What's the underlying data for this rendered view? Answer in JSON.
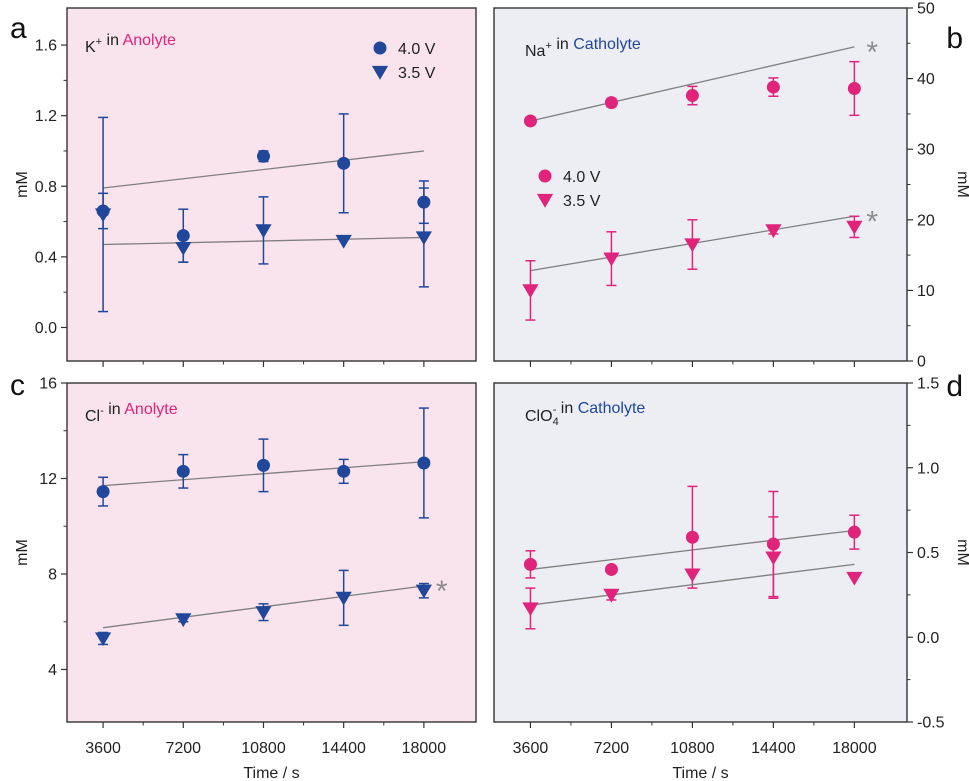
{
  "colors": {
    "blue": "#21479b",
    "pink": "#e0247b",
    "anolyte_bg": "#f9e3ec",
    "catholyte_bg": "#eceef4",
    "fit_line": "#7f7f7f",
    "asterisk": "#8c8c8c"
  },
  "chart_data": [
    {
      "id": "a",
      "type": "scatter",
      "panel_label": "a",
      "title_parts": [
        {
          "text": "K",
          "sup": "+",
          "color": "#222222"
        },
        {
          "text": " in ",
          "color": "#222222"
        },
        {
          "text": "Anolyte",
          "color": "#e0247b"
        }
      ],
      "ylabel": "mM",
      "xlabel": "",
      "x_ticks": [
        3600,
        7200,
        10800,
        14400,
        18000
      ],
      "x_tick_labels": [],
      "xlim": [
        1980,
        20340
      ],
      "ylim": [
        -0.19,
        1.81
      ],
      "y_ticks": [
        0.0,
        0.4,
        0.8,
        1.2,
        1.6
      ],
      "y_tick_labels": [
        "0.0",
        "0.4",
        "0.8",
        "1.2",
        "1.6"
      ],
      "y_axis_side": "left",
      "legend_position": "top-right",
      "legend": [
        {
          "label": "4.0 V",
          "marker": "circle",
          "color": "#21479b"
        },
        {
          "label": "3.5 V",
          "marker": "triangle-down",
          "color": "#21479b"
        }
      ],
      "series": [
        {
          "name": "4.0 V",
          "marker": "circle",
          "color": "#21479b",
          "x": [
            3600,
            7200,
            10800,
            14400,
            18000
          ],
          "y": [
            0.66,
            0.52,
            0.97,
            0.93,
            0.71
          ],
          "err": [
            0.1,
            0.15,
            0.03,
            0.28,
            0.12
          ],
          "fit": [
            0.79,
            1.0
          ],
          "asterisk": false
        },
        {
          "name": "3.5 V",
          "marker": "triangle-down",
          "color": "#21479b",
          "x": [
            3600,
            7200,
            10800,
            14400,
            18000
          ],
          "y": [
            0.64,
            0.45,
            0.55,
            0.49,
            0.51
          ],
          "err": [
            0.55,
            0.08,
            0.19,
            0.0,
            0.28
          ],
          "fit": [
            0.47,
            0.51
          ],
          "asterisk": false
        }
      ]
    },
    {
      "id": "b",
      "type": "scatter",
      "panel_label": "b",
      "title_parts": [
        {
          "text": "Na",
          "sup": "+",
          "color": "#222222"
        },
        {
          "text": " in ",
          "color": "#222222"
        },
        {
          "text": "Catholyte",
          "color": "#21479b"
        }
      ],
      "ylabel": "mM",
      "xlabel": "",
      "x_ticks": [
        3600,
        7200,
        10800,
        14400,
        18000
      ],
      "x_tick_labels": [],
      "xlim": [
        1980,
        20340
      ],
      "ylim": [
        0,
        50
      ],
      "y_ticks": [
        0,
        10,
        20,
        30,
        40,
        50
      ],
      "y_tick_labels": [
        "0",
        "10",
        "20",
        "30",
        "40",
        "50"
      ],
      "y_axis_side": "right",
      "legend_position": "center-left",
      "legend": [
        {
          "label": "4.0 V",
          "marker": "circle",
          "color": "#e0247b"
        },
        {
          "label": "3.5 V",
          "marker": "triangle-down",
          "color": "#e0247b"
        }
      ],
      "series": [
        {
          "name": "4.0 V",
          "marker": "circle",
          "color": "#e0247b",
          "x": [
            3600,
            7200,
            10800,
            14400,
            18000
          ],
          "y": [
            34.0,
            36.6,
            37.6,
            38.8,
            38.6
          ],
          "err": [
            0.5,
            0.6,
            1.3,
            1.3,
            3.8
          ],
          "fit": [
            34.0,
            44.5
          ],
          "asterisk": true
        },
        {
          "name": "3.5 V",
          "marker": "triangle-down",
          "color": "#e0247b",
          "x": [
            3600,
            7200,
            10800,
            14400,
            18000
          ],
          "y": [
            10.0,
            14.5,
            16.5,
            18.5,
            19.0
          ],
          "err": [
            4.2,
            3.8,
            3.5,
            0.5,
            1.5
          ],
          "fit": [
            12.8,
            20.5
          ],
          "asterisk": true
        }
      ]
    },
    {
      "id": "c",
      "type": "scatter",
      "panel_label": "c",
      "title_parts": [
        {
          "text": "Cl",
          "sup": "-",
          "color": "#222222"
        },
        {
          "text": " in ",
          "color": "#222222"
        },
        {
          "text": "Anolyte",
          "color": "#e0247b"
        }
      ],
      "ylabel": "mM",
      "xlabel": "Time / s",
      "x_ticks": [
        3600,
        7200,
        10800,
        14400,
        18000
      ],
      "x_tick_labels": [
        "3600",
        "7200",
        "10800",
        "14400",
        "18000"
      ],
      "xlim": [
        1980,
        20340
      ],
      "ylim": [
        1.8,
        16
      ],
      "y_ticks": [
        4,
        8,
        12,
        16
      ],
      "y_tick_labels": [
        "4",
        "8",
        "12",
        "16"
      ],
      "y_axis_side": "left",
      "legend_position": "none",
      "legend": [],
      "series": [
        {
          "name": "4.0 V",
          "marker": "circle",
          "color": "#21479b",
          "x": [
            3600,
            7200,
            10800,
            14400,
            18000
          ],
          "y": [
            11.45,
            12.3,
            12.55,
            12.3,
            12.65
          ],
          "err": [
            0.6,
            0.7,
            1.1,
            0.5,
            2.3
          ],
          "fit": [
            11.7,
            12.7
          ],
          "asterisk": false
        },
        {
          "name": "3.5 V",
          "marker": "triangle-down",
          "color": "#21479b",
          "x": [
            3600,
            7200,
            10800,
            14400,
            18000
          ],
          "y": [
            5.3,
            6.1,
            6.4,
            7.0,
            7.3
          ],
          "err": [
            0.25,
            0.1,
            0.35,
            1.15,
            0.3
          ],
          "fit": [
            5.75,
            7.5
          ],
          "asterisk": true
        }
      ]
    },
    {
      "id": "d",
      "type": "scatter",
      "panel_label": "d",
      "title_parts": [
        {
          "text": "ClO",
          "sub": "4",
          "sup": "-",
          "color": "#222222"
        },
        {
          "text": " in ",
          "color": "#222222"
        },
        {
          "text": "Catholyte",
          "color": "#21479b"
        }
      ],
      "ylabel": "mM",
      "xlabel": "Time / s",
      "x_ticks": [
        3600,
        7200,
        10800,
        14400,
        18000
      ],
      "x_tick_labels": [
        "3600",
        "7200",
        "10800",
        "14400",
        "18000"
      ],
      "xlim": [
        1980,
        20340
      ],
      "ylim": [
        -0.5,
        1.5
      ],
      "y_ticks": [
        -0.5,
        0.0,
        0.5,
        1.0,
        1.5
      ],
      "y_tick_labels": [
        "-0.5",
        "0.0",
        "0.5",
        "1.0",
        "1.5"
      ],
      "y_axis_side": "right",
      "legend_position": "none",
      "legend": [],
      "series": [
        {
          "name": "4.0 V",
          "marker": "circle",
          "color": "#e0247b",
          "x": [
            3600,
            7200,
            10800,
            14400,
            18000
          ],
          "y": [
            0.43,
            0.4,
            0.59,
            0.55,
            0.62
          ],
          "err": [
            0.08,
            0.0,
            0.3,
            0.31,
            0.1
          ],
          "fit": [
            0.4,
            0.63
          ],
          "asterisk": false
        },
        {
          "name": "3.5 V",
          "marker": "triangle-down",
          "color": "#e0247b",
          "x": [
            3600,
            7200,
            10800,
            14400,
            18000
          ],
          "y": [
            0.17,
            0.25,
            0.37,
            0.47,
            0.35
          ],
          "err": [
            0.12,
            0.03,
            0.0,
            0.24,
            0.0
          ],
          "fit": [
            0.19,
            0.43
          ],
          "asterisk": false
        }
      ]
    }
  ]
}
